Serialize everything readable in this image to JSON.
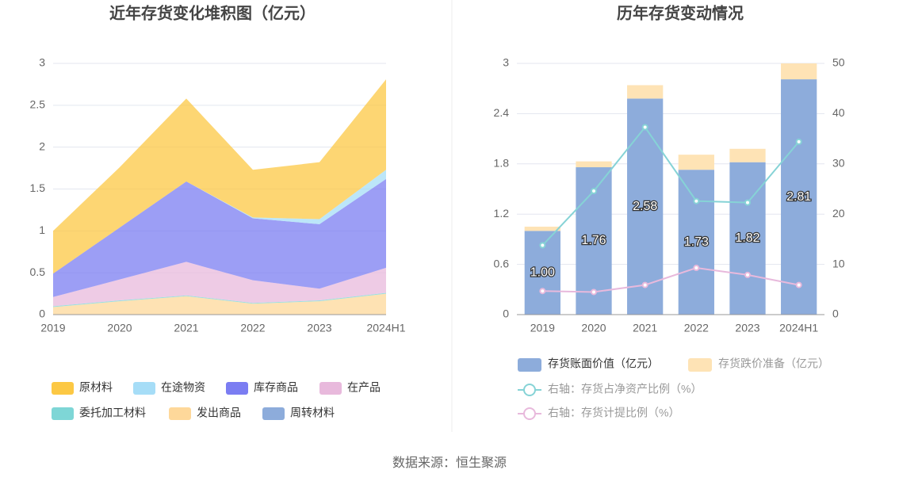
{
  "chart_data": [
    {
      "type": "stacked_area",
      "title": "近年存货变化堆积图（亿元）",
      "categories": [
        "2019",
        "2020",
        "2021",
        "2022",
        "2023",
        "2024H1"
      ],
      "series": [
        {
          "name": "原材料",
          "color": "#fcc844",
          "values": [
            0.51,
            0.72,
            0.99,
            0.57,
            0.68,
            1.08
          ]
        },
        {
          "name": "在途物资",
          "color": "#a6ddf7",
          "values": [
            0,
            0,
            0,
            0.01,
            0.06,
            0.11
          ]
        },
        {
          "name": "库存商品",
          "color": "#7b7df2",
          "values": [
            0.28,
            0.62,
            0.96,
            0.74,
            0.77,
            1.06
          ]
        },
        {
          "name": "在产品",
          "color": "#e8b9dc",
          "values": [
            0.11,
            0.25,
            0.4,
            0.27,
            0.14,
            0.3
          ]
        },
        {
          "name": "委托加工材料",
          "color": "#7ed6d6",
          "values": [
            0.01,
            0.01,
            0.01,
            0.01,
            0.01,
            0.01
          ]
        },
        {
          "name": "发出商品",
          "color": "#fed89a",
          "values": [
            0.09,
            0.16,
            0.22,
            0.13,
            0.16,
            0.25
          ]
        },
        {
          "name": "周转材料",
          "color": "#8dacdb",
          "values": [
            0,
            0,
            0,
            0,
            0,
            0
          ]
        }
      ],
      "ylim": [
        0,
        3
      ],
      "yticks": [
        0,
        0.5,
        1,
        1.5,
        2,
        2.5,
        3
      ],
      "grid": true
    },
    {
      "type": "bar_line",
      "title": "历年存货变动情况",
      "categories": [
        "2019",
        "2020",
        "2021",
        "2022",
        "2023",
        "2024H1"
      ],
      "series": [
        {
          "name": "存货账面价值（亿元）",
          "type": "bar",
          "color": "#8dacdb",
          "values": [
            1.0,
            1.76,
            2.58,
            1.73,
            1.82,
            2.81
          ],
          "value_labels": [
            "1.00",
            "1.76",
            "2.58",
            "1.73",
            "1.82",
            "2.81"
          ]
        },
        {
          "name": "存货跌价准备（亿元）",
          "type": "bar",
          "color": "#fee3b5",
          "values": [
            0.05,
            0.07,
            0.16,
            0.18,
            0.16,
            0.19
          ]
        },
        {
          "name": "右轴：存货占净资产比例（%）",
          "type": "line",
          "axis": "y2",
          "color": "#86d3d6",
          "values": [
            13.8,
            24.6,
            37.3,
            22.6,
            22.3,
            34.4
          ]
        },
        {
          "name": "右轴：存货计提比例（%）",
          "type": "line",
          "axis": "y2",
          "color": "#e8b9dc",
          "values": [
            4.7,
            4.5,
            5.9,
            9.3,
            7.9,
            5.9
          ]
        }
      ],
      "ylim": [
        0,
        3
      ],
      "yticks": [
        0,
        0.6,
        1.2,
        1.8,
        2.4,
        3
      ],
      "y2lim": [
        0,
        50
      ],
      "y2ticks": [
        0,
        10,
        20,
        30,
        40,
        50
      ],
      "grid": true
    }
  ],
  "source": "数据来源：恒生聚源"
}
